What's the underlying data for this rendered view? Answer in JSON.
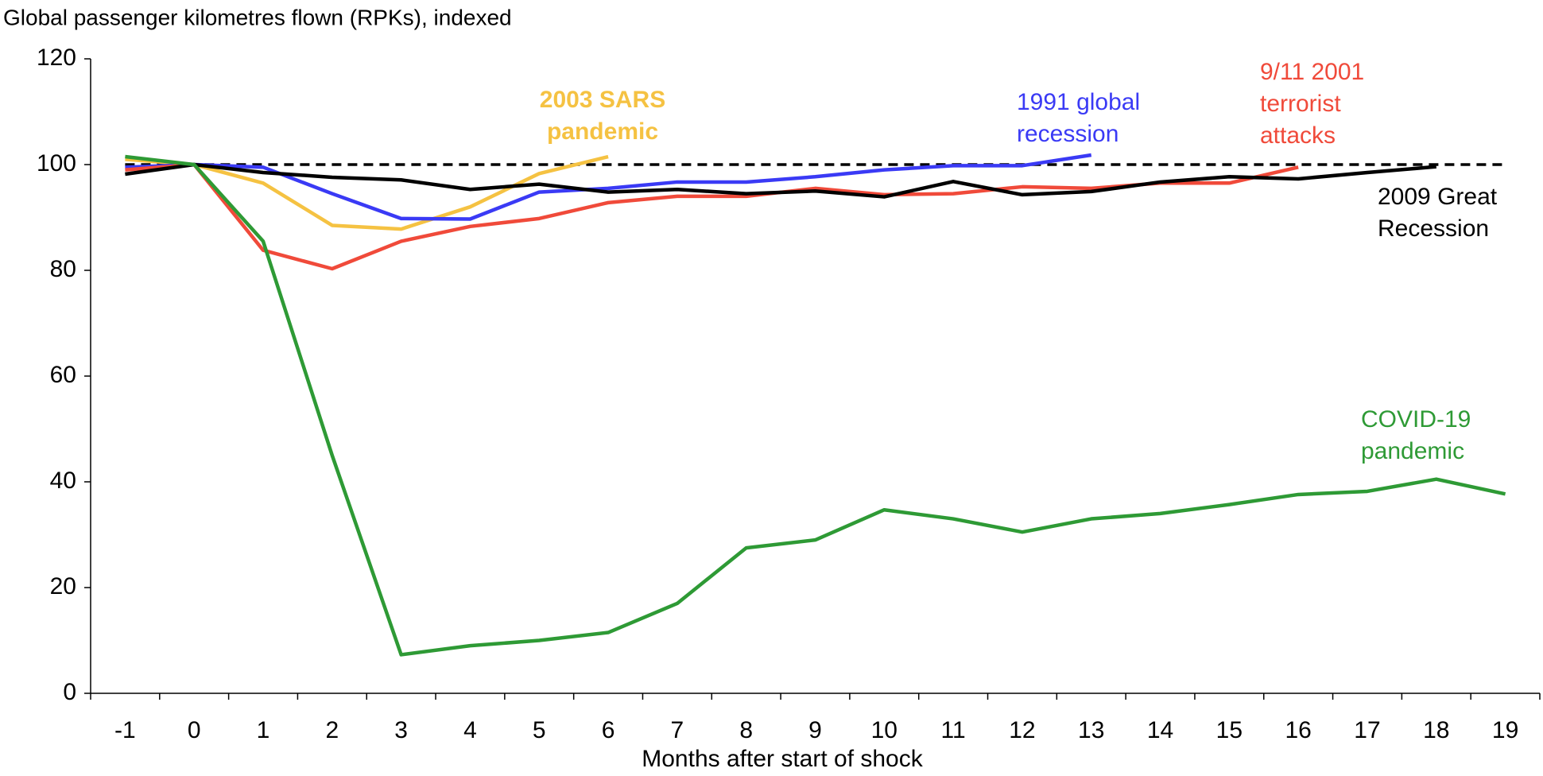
{
  "chart_data": {
    "type": "line",
    "title": "Global passenger kilometres flown (RPKs), indexed",
    "x_label": "Months after start of shock",
    "x": [
      -1,
      0,
      1,
      2,
      3,
      4,
      5,
      6,
      7,
      8,
      9,
      10,
      11,
      12,
      13,
      14,
      15,
      16,
      17,
      18,
      19
    ],
    "xlim": [
      -1.5,
      19.5
    ],
    "xticks": [
      -1,
      0,
      1,
      2,
      3,
      4,
      5,
      6,
      7,
      8,
      9,
      10,
      11,
      12,
      13,
      14,
      15,
      16,
      17,
      18,
      19
    ],
    "ylim": [
      0,
      120
    ],
    "yticks": [
      0,
      20,
      40,
      60,
      80,
      100,
      120
    ],
    "reference_line": {
      "value": 100,
      "color": "#000000",
      "dashed": true
    },
    "series": [
      {
        "name": "2003 SARS pandemic",
        "color": "#f5c242",
        "values": [
          101,
          100,
          96.5,
          88.5,
          87.8,
          92,
          98.3,
          101.5,
          null,
          null,
          null,
          null,
          null,
          null,
          null,
          null,
          null,
          null,
          null,
          null,
          null
        ]
      },
      {
        "name": "1991 global recession",
        "color": "#3a3af5",
        "values": [
          99.5,
          100,
          99.5,
          94.5,
          89.8,
          89.7,
          94.8,
          95.5,
          96.7,
          96.7,
          97.7,
          99,
          99.8,
          99.8,
          101.8,
          null,
          null,
          null,
          null,
          null,
          null
        ]
      },
      {
        "name": "9/11 2001 terrorist attacks",
        "color": "#f04a3a",
        "values": [
          99,
          100,
          83.8,
          80.3,
          85.5,
          88.3,
          89.8,
          92.8,
          94,
          94,
          95.5,
          94.3,
          94.5,
          95.8,
          95.5,
          96.5,
          96.5,
          99.5,
          null,
          null,
          null
        ]
      },
      {
        "name": "2009 Great Recession",
        "color": "#000000",
        "values": [
          98.2,
          100,
          98.5,
          97.6,
          97.1,
          95.3,
          96.3,
          94.8,
          95.3,
          94.5,
          95,
          93.9,
          96.8,
          94.3,
          94.9,
          96.7,
          97.7,
          97.3,
          98.5,
          99.6,
          null
        ]
      },
      {
        "name": "COVID-19 pandemic",
        "color": "#2e9a35",
        "values": [
          101.5,
          100,
          85.5,
          45,
          7.3,
          9,
          10,
          11.5,
          17,
          27.5,
          29,
          34.7,
          33,
          30.5,
          33,
          34,
          35.7,
          37.6,
          38.2,
          40.5,
          37.7
        ]
      }
    ],
    "annotations": [
      {
        "lines": [
          "2003 SARS",
          "pandemic"
        ],
        "color": "#f5c242",
        "bold": true
      },
      {
        "lines": [
          "1991 global",
          "recession"
        ],
        "color": "#3a3af5"
      },
      {
        "lines": [
          "9/11 2001",
          "terrorist",
          "attacks"
        ],
        "color": "#f04a3a"
      },
      {
        "lines": [
          "2009 Great",
          "Recession"
        ],
        "color": "#000000"
      },
      {
        "lines": [
          "COVID-19",
          "pandemic"
        ],
        "color": "#2e9a35"
      }
    ]
  }
}
